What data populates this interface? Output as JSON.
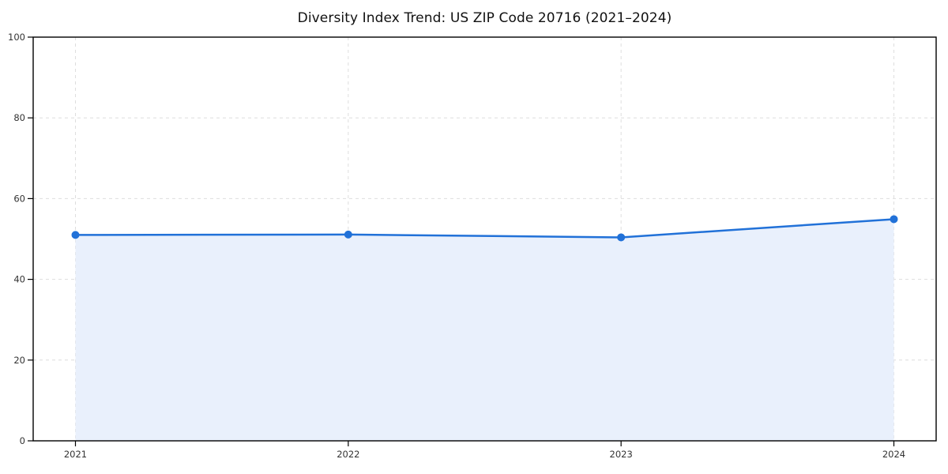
{
  "chart_data": {
    "type": "area",
    "title": "Diversity Index Trend: US ZIP Code 20716 (2021–2024)",
    "series_name": "Diversity Index",
    "x_tick_labels": [
      "2021",
      "2022",
      "2023",
      "2024"
    ],
    "x": [
      2021,
      2022,
      2023,
      2024
    ],
    "values": [
      51.0,
      51.1,
      50.4,
      54.9
    ],
    "xlabel": "",
    "ylabel": "",
    "ylim": [
      0,
      100
    ],
    "y_ticks": [
      0,
      20,
      40,
      60,
      80,
      100
    ],
    "grid": true,
    "grid_style": "dashed",
    "legend": "none",
    "fill_to_zero": true,
    "marker": "circle"
  },
  "colors": {
    "line": "#2171d8",
    "marker": "#2171d8",
    "fill": "#e9f0fc",
    "grid": "#dedede",
    "axis": "#000000",
    "tick_label": "#333333",
    "title": "#111111",
    "background": "#ffffff"
  }
}
